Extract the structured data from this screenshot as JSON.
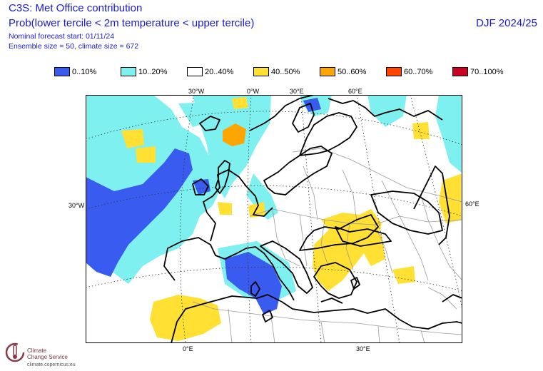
{
  "header": {
    "title": "C3S: Met Office contribution",
    "variable": "Prob(lower tercile < 2m temperature < upper tercile)",
    "forecast_start": "Nominal forecast start: 01/11/24",
    "ensemble": "Ensemble size = 50, climate size = 672",
    "season": "DJF 2024/25"
  },
  "legend": [
    {
      "label": "0..10%",
      "color": "#3a5bf0"
    },
    {
      "label": "10..20%",
      "color": "#7ff0f0"
    },
    {
      "label": "20..40%",
      "color": "#ffffff"
    },
    {
      "label": "40..50%",
      "color": "#ffe033"
    },
    {
      "label": "50..60%",
      "color": "#ffa500"
    },
    {
      "label": "60..70%",
      "color": "#ff4500"
    },
    {
      "label": "70..100%",
      "color": "#cc0022"
    }
  ],
  "map": {
    "lon_top": [
      "30°W",
      "0°W",
      "30°E",
      "60°E"
    ],
    "lat_left": "30°W",
    "lat_right": "60°E",
    "lon_bottom": [
      "0°E",
      "30°E"
    ]
  },
  "logo": {
    "line1": "Climate",
    "line2": "Change Service",
    "url": "climate.copernicus.eu"
  }
}
